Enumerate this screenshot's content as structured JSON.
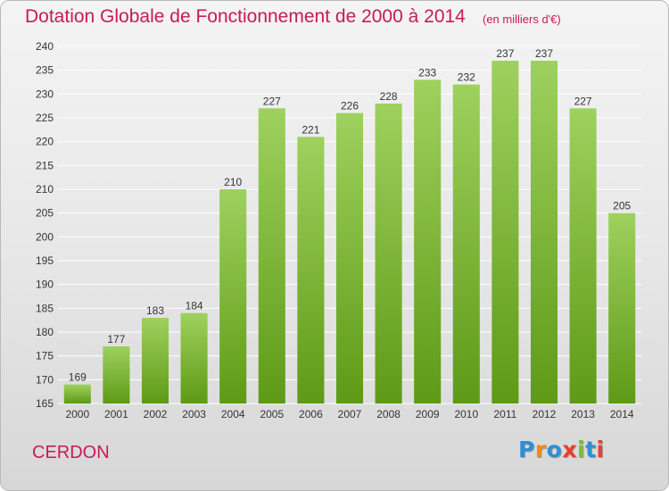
{
  "header": {
    "title": "Dotation Globale de Fonctionnement de 2000 à 2014",
    "unit": "(en milliers d'€)"
  },
  "footer": {
    "commune": "CERDON",
    "logo_text": "Proxiti"
  },
  "colors": {
    "title": "#c8195a",
    "bar_top": "#9ed15e",
    "bar_bottom": "#5e9a16",
    "grid": "#ffffff",
    "text": "#333333",
    "logo": [
      "#2e8fd6",
      "#f08a1c",
      "#2e8fd6",
      "#e8402c",
      "#7bbf2a",
      "#2e8fd6",
      "#e8402c"
    ]
  },
  "chart_data": {
    "type": "bar",
    "categories": [
      "2000",
      "2001",
      "2002",
      "2003",
      "2004",
      "2005",
      "2006",
      "2007",
      "2008",
      "2009",
      "2010",
      "2011",
      "2012",
      "2013",
      "2014"
    ],
    "values": [
      169,
      177,
      183,
      184,
      210,
      227,
      221,
      226,
      228,
      233,
      232,
      237,
      237,
      227,
      205
    ],
    "title": "Dotation Globale de Fonctionnement de 2000 à 2014",
    "xlabel": "",
    "ylabel": "",
    "ylim": [
      165,
      240
    ],
    "yticks": [
      165,
      170,
      175,
      180,
      185,
      190,
      195,
      200,
      205,
      210,
      215,
      220,
      225,
      230,
      235,
      240
    ],
    "grid": true,
    "data_labels": true
  }
}
